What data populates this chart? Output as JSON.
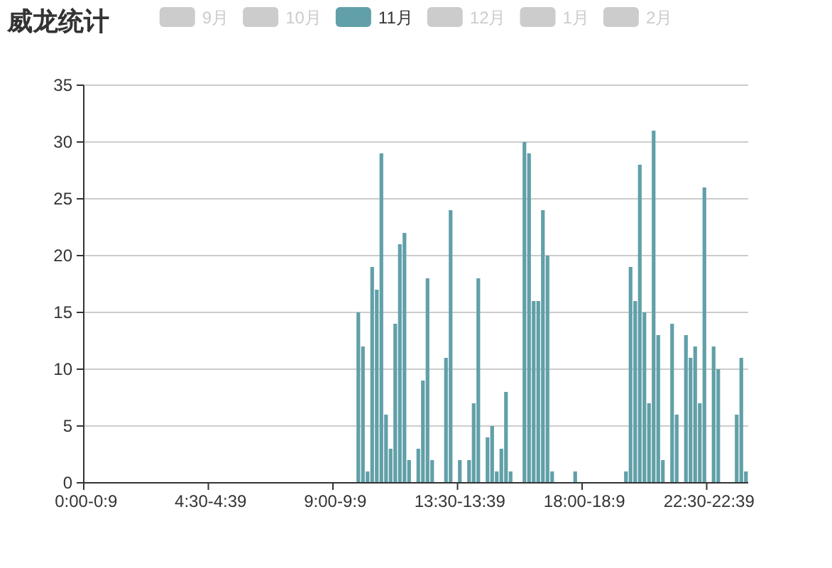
{
  "chart_data": {
    "type": "bar",
    "title": "威龙统计",
    "categories": [
      "0:00-0:9",
      null,
      null,
      null,
      null,
      null,
      null,
      null,
      null,
      null,
      null,
      null,
      null,
      null,
      null,
      null,
      null,
      null,
      null,
      null,
      null,
      null,
      null,
      null,
      null,
      null,
      null,
      "4:30-4:39",
      null,
      null,
      null,
      null,
      null,
      null,
      null,
      null,
      null,
      null,
      null,
      null,
      null,
      null,
      null,
      null,
      null,
      null,
      null,
      null,
      null,
      null,
      null,
      null,
      null,
      null,
      "9:00-9:9",
      null,
      null,
      null,
      null,
      null,
      null,
      null,
      null,
      null,
      null,
      null,
      null,
      null,
      null,
      null,
      null,
      null,
      null,
      null,
      null,
      null,
      null,
      null,
      null,
      null,
      null,
      "13:30-13:39",
      null,
      null,
      null,
      null,
      null,
      null,
      null,
      null,
      null,
      null,
      null,
      null,
      null,
      null,
      null,
      null,
      null,
      null,
      null,
      null,
      null,
      null,
      null,
      null,
      null,
      null,
      "18:00-18:9",
      null,
      null,
      null,
      null,
      null,
      null,
      null,
      null,
      null,
      null,
      null,
      null,
      null,
      null,
      null,
      null,
      null,
      null,
      null,
      null,
      null,
      null,
      null,
      null,
      null,
      null,
      "22:30-22:39",
      null,
      null,
      null,
      null,
      null,
      null,
      null,
      null
    ],
    "series": [
      {
        "name": "9月",
        "color": "#cccccc",
        "values": [
          null,
          null,
          null,
          null,
          null,
          null,
          null,
          null,
          null,
          null,
          null,
          null,
          null,
          null,
          null,
          null,
          null,
          null,
          null,
          null,
          null,
          null,
          null,
          null,
          null,
          null,
          null,
          null,
          null,
          null,
          null,
          null,
          null,
          null,
          null,
          null,
          null,
          null,
          null,
          null,
          null,
          null,
          null,
          null,
          null,
          null,
          null,
          null,
          null,
          null,
          null,
          null,
          null,
          null,
          null,
          null,
          null,
          null,
          null,
          null,
          null,
          null,
          null,
          null,
          null,
          null,
          null,
          null,
          null,
          null,
          null,
          null,
          null,
          null,
          null,
          null,
          null,
          null,
          null,
          null,
          null,
          null,
          null,
          null,
          null,
          null,
          null,
          null,
          null,
          null,
          null,
          null,
          null,
          null,
          null,
          null,
          null,
          null,
          null,
          null,
          null,
          null,
          null,
          null,
          null,
          null,
          null,
          null,
          null,
          null,
          null,
          null,
          null,
          null,
          null,
          null,
          null,
          null,
          null,
          null,
          null,
          null,
          null,
          null,
          null,
          null,
          null,
          null,
          null,
          null,
          null,
          null,
          null,
          null,
          null,
          null,
          null,
          null,
          null,
          null,
          null,
          null,
          null,
          null
        ]
      },
      {
        "name": "10月",
        "color": "#cccccc",
        "values": [
          null,
          null,
          null,
          null,
          null,
          null,
          null,
          null,
          null,
          null,
          null,
          null,
          null,
          null,
          null,
          null,
          null,
          null,
          null,
          null,
          null,
          null,
          null,
          null,
          null,
          null,
          null,
          null,
          null,
          null,
          null,
          null,
          null,
          null,
          null,
          null,
          null,
          null,
          null,
          null,
          null,
          null,
          null,
          null,
          null,
          null,
          null,
          null,
          null,
          null,
          null,
          null,
          null,
          null,
          null,
          null,
          null,
          null,
          null,
          null,
          null,
          null,
          null,
          null,
          null,
          null,
          null,
          null,
          null,
          null,
          null,
          null,
          null,
          null,
          null,
          null,
          null,
          null,
          null,
          null,
          null,
          null,
          null,
          null,
          null,
          null,
          null,
          null,
          null,
          null,
          null,
          null,
          null,
          null,
          null,
          null,
          null,
          null,
          null,
          null,
          null,
          null,
          null,
          null,
          null,
          null,
          null,
          null,
          null,
          null,
          null,
          null,
          null,
          null,
          null,
          null,
          null,
          null,
          null,
          null,
          null,
          null,
          null,
          null,
          null,
          null,
          null,
          null,
          null,
          null,
          null,
          null,
          null,
          null,
          null,
          null,
          null,
          null,
          null,
          null,
          null,
          null,
          null,
          null
        ]
      },
      {
        "name": "11月",
        "color": "#61a0a8",
        "values": [
          null,
          null,
          null,
          null,
          null,
          null,
          null,
          null,
          null,
          null,
          null,
          null,
          null,
          null,
          null,
          null,
          null,
          null,
          null,
          null,
          null,
          null,
          null,
          null,
          null,
          null,
          null,
          null,
          null,
          null,
          null,
          null,
          null,
          null,
          null,
          null,
          null,
          null,
          null,
          null,
          null,
          null,
          null,
          null,
          null,
          null,
          null,
          null,
          null,
          null,
          null,
          null,
          null,
          null,
          null,
          null,
          null,
          null,
          null,
          15,
          12,
          1,
          19,
          17,
          29,
          6,
          3,
          14,
          21,
          22,
          2,
          null,
          3,
          9,
          18,
          2,
          null,
          null,
          11,
          24,
          null,
          2,
          null,
          2,
          7,
          18,
          null,
          4,
          5,
          1,
          3,
          8,
          1,
          null,
          null,
          30,
          29,
          16,
          16,
          24,
          20,
          1,
          null,
          null,
          null,
          null,
          1,
          null,
          null,
          null,
          null,
          null,
          null,
          null,
          null,
          null,
          null,
          1,
          19,
          16,
          28,
          15,
          7,
          31,
          13,
          2,
          null,
          14,
          6,
          null,
          13,
          11,
          12,
          7,
          26,
          null,
          12,
          10,
          null,
          null,
          null,
          6,
          11,
          1
        ]
      },
      {
        "name": "12月",
        "color": "#cccccc",
        "values": [
          null,
          null,
          null,
          null,
          null,
          null,
          null,
          null,
          null,
          null,
          null,
          null,
          null,
          null,
          null,
          null,
          null,
          null,
          null,
          null,
          null,
          null,
          null,
          null,
          null,
          null,
          null,
          null,
          null,
          null,
          null,
          null,
          null,
          null,
          null,
          null,
          null,
          null,
          null,
          null,
          null,
          null,
          null,
          null,
          null,
          null,
          null,
          null,
          null,
          null,
          null,
          null,
          null,
          null,
          null,
          null,
          null,
          null,
          null,
          null,
          null,
          null,
          null,
          null,
          null,
          null,
          null,
          null,
          null,
          null,
          null,
          null,
          null,
          null,
          null,
          null,
          null,
          null,
          null,
          null,
          null,
          null,
          null,
          null,
          null,
          null,
          null,
          null,
          null,
          null,
          null,
          null,
          null,
          null,
          null,
          null,
          null,
          null,
          null,
          null,
          null,
          null,
          null,
          null,
          null,
          null,
          null,
          null,
          null,
          null,
          null,
          null,
          null,
          null,
          null,
          null,
          null,
          null,
          null,
          null,
          null,
          null,
          null,
          null,
          null,
          null,
          null,
          null,
          null,
          null,
          null,
          null,
          null,
          null,
          null,
          null,
          null,
          null,
          null,
          null,
          null,
          null,
          null,
          null
        ]
      },
      {
        "name": "1月",
        "color": "#cccccc",
        "values": [
          null,
          null,
          null,
          null,
          null,
          null,
          null,
          null,
          null,
          null,
          null,
          null,
          null,
          null,
          null,
          null,
          null,
          null,
          null,
          null,
          null,
          null,
          null,
          null,
          null,
          null,
          null,
          null,
          null,
          null,
          null,
          null,
          null,
          null,
          null,
          null,
          null,
          null,
          null,
          null,
          null,
          null,
          null,
          null,
          null,
          null,
          null,
          null,
          null,
          null,
          null,
          null,
          null,
          null,
          null,
          null,
          null,
          null,
          null,
          null,
          null,
          null,
          null,
          null,
          null,
          null,
          null,
          null,
          null,
          null,
          null,
          null,
          null,
          null,
          null,
          null,
          null,
          null,
          null,
          null,
          null,
          null,
          null,
          null,
          null,
          null,
          null,
          null,
          null,
          null,
          null,
          null,
          null,
          null,
          null,
          null,
          null,
          null,
          null,
          null,
          null,
          null,
          null,
          null,
          null,
          null,
          null,
          null,
          null,
          null,
          null,
          null,
          null,
          null,
          null,
          null,
          null,
          null,
          null,
          null,
          null,
          null,
          null,
          null,
          null,
          null,
          null,
          null,
          null,
          null,
          null,
          null,
          null,
          null,
          null,
          null,
          null,
          null,
          null,
          null,
          null,
          null,
          null,
          null
        ]
      },
      {
        "name": "2月",
        "color": "#cccccc",
        "values": [
          null,
          null,
          null,
          null,
          null,
          null,
          null,
          null,
          null,
          null,
          null,
          null,
          null,
          null,
          null,
          null,
          null,
          null,
          null,
          null,
          null,
          null,
          null,
          null,
          null,
          null,
          null,
          null,
          null,
          null,
          null,
          null,
          null,
          null,
          null,
          null,
          null,
          null,
          null,
          null,
          null,
          null,
          null,
          null,
          null,
          null,
          null,
          null,
          null,
          null,
          null,
          null,
          null,
          null,
          null,
          null,
          null,
          null,
          null,
          null,
          null,
          null,
          null,
          null,
          null,
          null,
          null,
          null,
          null,
          null,
          null,
          null,
          null,
          null,
          null,
          null,
          null,
          null,
          null,
          null,
          null,
          null,
          null,
          null,
          null,
          null,
          null,
          null,
          null,
          null,
          null,
          null,
          null,
          null,
          null,
          null,
          null,
          null,
          null,
          null,
          null,
          null,
          null,
          null,
          null,
          null,
          null,
          null,
          null,
          null,
          null,
          null,
          null,
          null,
          null,
          null,
          null,
          null,
          null,
          null,
          null,
          null,
          null,
          null,
          null,
          null,
          null,
          null,
          null,
          null,
          null,
          null,
          null,
          null,
          null,
          null,
          null,
          null,
          null,
          null,
          null,
          null,
          null,
          null
        ]
      }
    ],
    "ylim": [
      0,
      35
    ],
    "yticks": [
      0,
      5,
      10,
      15,
      20,
      25,
      30,
      35
    ],
    "grid": "y",
    "legend": "top"
  }
}
